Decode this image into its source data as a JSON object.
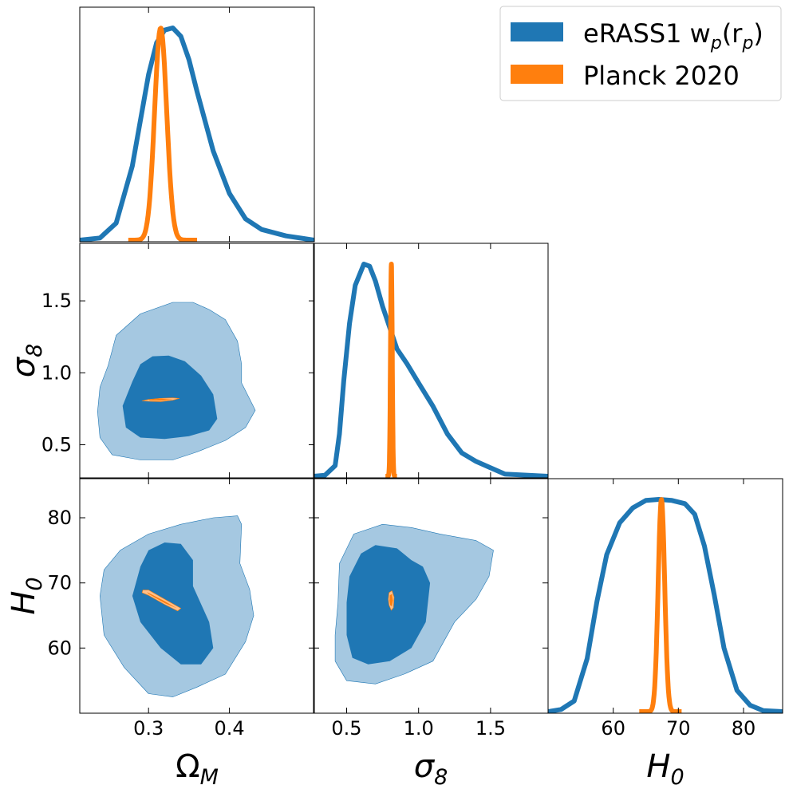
{
  "chart_data": {
    "type": "corner",
    "parameters": [
      {
        "key": "om",
        "label": "Ω",
        "sub": "M",
        "ticks": [
          0.3,
          0.4
        ],
        "tick_labels": [
          "0.3",
          "0.4"
        ],
        "range": [
          0.215,
          0.505
        ]
      },
      {
        "key": "s8",
        "label": "σ",
        "sub": "8",
        "ticks": [
          0.5,
          1.0,
          1.5
        ],
        "tick_labels": [
          "0.5",
          "1.0",
          "1.5"
        ],
        "range": [
          0.27,
          1.9
        ]
      },
      {
        "key": "h0",
        "label": "H",
        "sub": "0",
        "ticks": [
          60,
          70,
          80
        ],
        "tick_labels": [
          "60",
          "70",
          "80"
        ],
        "range": [
          50.0,
          86.0
        ]
      }
    ],
    "legend": {
      "position": "top-right",
      "entries": [
        {
          "label_main": "eRASS1 w",
          "sub1": "p",
          "label_mid": "(r",
          "sub2": "p",
          "label_end": ")",
          "color": "#1f77b4"
        },
        {
          "label_main": "Planck 2020",
          "color": "#ff7f0e"
        }
      ]
    },
    "series": [
      {
        "name": "eRASS1 wp(rp)",
        "color": "#1f77b4",
        "fill_68": "#1f77b4",
        "fill_95": "#a5c8e1",
        "marginals": {
          "om": [
            [
              0.215,
              0.0
            ],
            [
              0.24,
              0.01
            ],
            [
              0.26,
              0.08
            ],
            [
              0.28,
              0.35
            ],
            [
              0.3,
              0.78
            ],
            [
              0.31,
              0.93
            ],
            [
              0.32,
              0.99
            ],
            [
              0.33,
              1.0
            ],
            [
              0.34,
              0.96
            ],
            [
              0.35,
              0.85
            ],
            [
              0.36,
              0.7
            ],
            [
              0.38,
              0.42
            ],
            [
              0.4,
              0.22
            ],
            [
              0.42,
              0.1
            ],
            [
              0.44,
              0.05
            ],
            [
              0.47,
              0.02
            ],
            [
              0.505,
              0.0
            ]
          ],
          "s8": [
            [
              0.27,
              0.0
            ],
            [
              0.35,
              0.005
            ],
            [
              0.42,
              0.05
            ],
            [
              0.45,
              0.2
            ],
            [
              0.48,
              0.45
            ],
            [
              0.52,
              0.72
            ],
            [
              0.56,
              0.9
            ],
            [
              0.62,
              1.0
            ],
            [
              0.66,
              0.99
            ],
            [
              0.7,
              0.92
            ],
            [
              0.75,
              0.8
            ],
            [
              0.8,
              0.7
            ],
            [
              0.85,
              0.6
            ],
            [
              0.92,
              0.53
            ],
            [
              1.0,
              0.44
            ],
            [
              1.1,
              0.33
            ],
            [
              1.2,
              0.2
            ],
            [
              1.3,
              0.11
            ],
            [
              1.4,
              0.07
            ],
            [
              1.5,
              0.04
            ],
            [
              1.6,
              0.01
            ],
            [
              1.9,
              0.0
            ]
          ],
          "h0": [
            [
              50.0,
              0.0
            ],
            [
              52.0,
              0.01
            ],
            [
              54.0,
              0.05
            ],
            [
              56.0,
              0.25
            ],
            [
              57.5,
              0.52
            ],
            [
              59.0,
              0.74
            ],
            [
              61.0,
              0.89
            ],
            [
              63.0,
              0.96
            ],
            [
              65.0,
              0.995
            ],
            [
              67.0,
              1.0
            ],
            [
              69.0,
              0.995
            ],
            [
              71.0,
              0.98
            ],
            [
              72.5,
              0.93
            ],
            [
              74.0,
              0.78
            ],
            [
              75.5,
              0.55
            ],
            [
              77.0,
              0.3
            ],
            [
              79.0,
              0.1
            ],
            [
              81.0,
              0.03
            ],
            [
              83.0,
              0.005
            ],
            [
              86.0,
              0.0
            ]
          ]
        },
        "contours": {
          "s8_om": {
            "c95": [
              [
                0.25,
                1.05
              ],
              [
                0.26,
                1.26
              ],
              [
                0.29,
                1.41
              ],
              [
                0.33,
                1.49
              ],
              [
                0.355,
                1.49
              ],
              [
                0.375,
                1.44
              ],
              [
                0.395,
                1.37
              ],
              [
                0.41,
                1.22
              ],
              [
                0.415,
                1.06
              ],
              [
                0.415,
                0.93
              ],
              [
                0.432,
                0.74
              ],
              [
                0.42,
                0.62
              ],
              [
                0.395,
                0.53
              ],
              [
                0.36,
                0.45
              ],
              [
                0.33,
                0.395
              ],
              [
                0.29,
                0.395
              ],
              [
                0.255,
                0.43
              ],
              [
                0.24,
                0.55
              ],
              [
                0.237,
                0.73
              ],
              [
                0.24,
                0.9
              ]
            ],
            "c68": [
              [
                0.28,
                0.94
              ],
              [
                0.29,
                1.06
              ],
              [
                0.305,
                1.115
              ],
              [
                0.325,
                1.12
              ],
              [
                0.345,
                1.08
              ],
              [
                0.365,
                0.98
              ],
              [
                0.38,
                0.85
              ],
              [
                0.385,
                0.68
              ],
              [
                0.375,
                0.6
              ],
              [
                0.35,
                0.56
              ],
              [
                0.32,
                0.54
              ],
              [
                0.29,
                0.55
              ],
              [
                0.272,
                0.62
              ],
              [
                0.268,
                0.77
              ]
            ]
          },
          "h0_om": {
            "c95": [
              [
                0.245,
                72.0
              ],
              [
                0.265,
                75.0
              ],
              [
                0.3,
                77.5
              ],
              [
                0.34,
                79.0
              ],
              [
                0.38,
                80.0
              ],
              [
                0.41,
                80.3
              ],
              [
                0.415,
                79.0
              ],
              [
                0.413,
                73.0
              ],
              [
                0.425,
                69.0
              ],
              [
                0.43,
                65.0
              ],
              [
                0.42,
                61.0
              ],
              [
                0.395,
                56.0
              ],
              [
                0.36,
                54.0
              ],
              [
                0.33,
                52.5
              ],
              [
                0.3,
                53.0
              ],
              [
                0.27,
                57.0
              ],
              [
                0.245,
                62.0
              ],
              [
                0.24,
                68.0
              ]
            ],
            "c68": [
              [
                0.29,
                72.5
              ],
              [
                0.3,
                75.0
              ],
              [
                0.32,
                76.2
              ],
              [
                0.34,
                76.0
              ],
              [
                0.355,
                73.5
              ],
              [
                0.355,
                69.5
              ],
              [
                0.375,
                64.0
              ],
              [
                0.38,
                60.0
              ],
              [
                0.365,
                57.5
              ],
              [
                0.34,
                57.5
              ],
              [
                0.315,
                60.0
              ],
              [
                0.29,
                64.0
              ],
              [
                0.28,
                68.0
              ]
            ]
          },
          "h0_s8": {
            "c95": [
              [
                0.45,
                73.0
              ],
              [
                0.55,
                77.5
              ],
              [
                0.75,
                79.0
              ],
              [
                0.95,
                78.5
              ],
              [
                1.15,
                77.5
              ],
              [
                1.4,
                76.5
              ],
              [
                1.52,
                75.0
              ],
              [
                1.49,
                71.0
              ],
              [
                1.4,
                67.5
              ],
              [
                1.25,
                64.0
              ],
              [
                1.1,
                58.0
              ],
              [
                0.9,
                56.0
              ],
              [
                0.7,
                54.5
              ],
              [
                0.5,
                55.0
              ],
              [
                0.42,
                58.0
              ],
              [
                0.42,
                62.0
              ],
              [
                0.44,
                67.0
              ]
            ],
            "c68": [
              [
                0.52,
                71.0
              ],
              [
                0.6,
                74.5
              ],
              [
                0.7,
                75.8
              ],
              [
                0.85,
                75.3
              ],
              [
                0.95,
                73.5
              ],
              [
                1.03,
                72.5
              ],
              [
                1.08,
                70.0
              ],
              [
                1.05,
                64.0
              ],
              [
                0.95,
                60.0
              ],
              [
                0.8,
                58.0
              ],
              [
                0.65,
                57.5
              ],
              [
                0.54,
                58.5
              ],
              [
                0.5,
                62.0
              ],
              [
                0.5,
                67.0
              ]
            ]
          }
        }
      },
      {
        "name": "Planck 2020",
        "color": "#ff7f0e",
        "fill_68": "#ff7f0e",
        "fill_95": "#ffc08a",
        "marginals": {
          "om": {
            "mean": 0.315,
            "sd": 0.0075,
            "range": [
              0.275,
              0.36
            ]
          },
          "s8": {
            "mean": 0.811,
            "sd": 0.006,
            "range": [
              0.77,
              0.85
            ]
          },
          "h0": {
            "mean": 67.4,
            "sd": 0.5,
            "range": [
              64.0,
              70.5
            ]
          }
        },
        "contours": {
          "s8_om": {
            "c95": [
              [
                0.292,
                0.805
              ],
              [
                0.3,
                0.802
              ],
              [
                0.315,
                0.8
              ],
              [
                0.33,
                0.81
              ],
              [
                0.338,
                0.822
              ],
              [
                0.33,
                0.826
              ],
              [
                0.315,
                0.823
              ],
              [
                0.3,
                0.815
              ]
            ],
            "c68": [
              [
                0.3,
                0.808
              ],
              [
                0.315,
                0.806
              ],
              [
                0.33,
                0.815
              ],
              [
                0.315,
                0.82
              ],
              [
                0.302,
                0.814
              ]
            ]
          },
          "h0_om": {
            "c95": [
              [
                0.293,
                68.9
              ],
              [
                0.3,
                68.9
              ],
              [
                0.32,
                67.5
              ],
              [
                0.34,
                66.1
              ],
              [
                0.336,
                65.7
              ],
              [
                0.32,
                66.7
              ],
              [
                0.3,
                68.1
              ],
              [
                0.292,
                68.5
              ]
            ],
            "c68": [
              [
                0.298,
                68.6
              ],
              [
                0.32,
                67.2
              ],
              [
                0.335,
                66.1
              ],
              [
                0.32,
                66.9
              ],
              [
                0.3,
                68.3
              ]
            ]
          },
          "h0_s8": {
            "c95": [
              [
                0.795,
                68.5
              ],
              [
                0.815,
                68.8
              ],
              [
                0.83,
                67.8
              ],
              [
                0.825,
                66.2
              ],
              [
                0.81,
                65.8
              ],
              [
                0.795,
                66.6
              ],
              [
                0.79,
                67.5
              ]
            ],
            "c68": [
              [
                0.8,
                68.1
              ],
              [
                0.815,
                68.3
              ],
              [
                0.822,
                67.3
              ],
              [
                0.815,
                66.4
              ],
              [
                0.802,
                66.6
              ],
              [
                0.798,
                67.3
              ]
            ]
          }
        }
      }
    ]
  }
}
